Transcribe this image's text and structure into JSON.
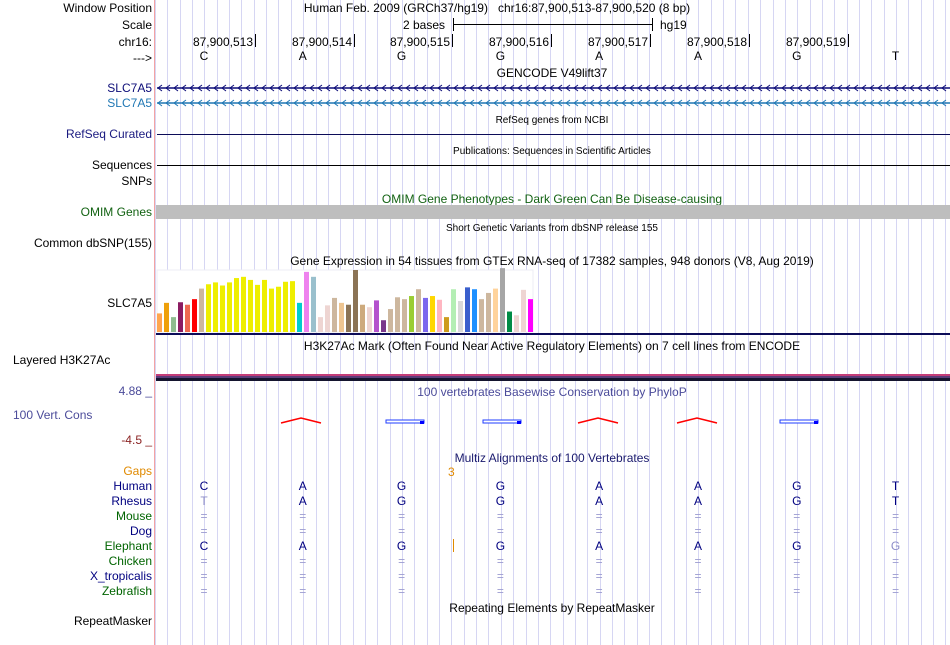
{
  "header": {
    "window_position_label": "Window Position",
    "scale_label": "Scale",
    "chrom_label": "chr16:",
    "strand_label": "--->",
    "assembly_title": "Human Feb. 2009 (GRCh37/hg19)",
    "position_text": "chr16:87,900,513-87,900,520 (8 bp)",
    "scale_text": "2 bases",
    "scale_db": "hg19"
  },
  "ruler": {
    "positions": [
      "87,900,513",
      "87,900,514",
      "87,900,515",
      "87,900,516",
      "87,900,517",
      "87,900,518",
      "87,900,519"
    ],
    "bases": [
      "C",
      "A",
      "G",
      "G",
      "A",
      "A",
      "G",
      "T"
    ]
  },
  "tracks": {
    "gencode": {
      "title": "GENCODE V49lift37",
      "genes": [
        "SLC7A5",
        "SLC7A5"
      ],
      "strand": "minus"
    },
    "refseq": {
      "title": "RefSeq genes from NCBI",
      "label": "RefSeq Curated"
    },
    "publications": {
      "title": "Publications: Sequences in Scientific Articles",
      "label": "Sequences",
      "label2": "SNPs"
    },
    "omim": {
      "title": "OMIM Gene Phenotypes - Dark Green Can Be Disease-causing",
      "label": "OMIM Genes"
    },
    "dbsnp": {
      "title": "Short Genetic Variants from dbSNP release 155",
      "label": "Common dbSNP(155)"
    },
    "gtex": {
      "title": "Gene Expression in 54 tissues from GTEx RNA-seq of 17382 samples, 948 donors (V8, Aug 2019)",
      "label": "SLC7A5",
      "bars": [
        {
          "color": "#ffa54f",
          "value": 0.3
        },
        {
          "color": "#eea00a",
          "value": 0.47
        },
        {
          "color": "#8fbc8f",
          "value": 0.24
        },
        {
          "color": "#8b1c62",
          "value": 0.48
        },
        {
          "color": "#ee6a50",
          "value": 0.44
        },
        {
          "color": "#ff0000",
          "value": 0.53
        },
        {
          "color": "#cdb79e",
          "value": 0.7
        },
        {
          "color": "#eeee00",
          "value": 0.77
        },
        {
          "color": "#eeee00",
          "value": 0.8
        },
        {
          "color": "#eeee00",
          "value": 0.75
        },
        {
          "color": "#eeee00",
          "value": 0.8
        },
        {
          "color": "#eeee00",
          "value": 0.87
        },
        {
          "color": "#eeee00",
          "value": 0.89
        },
        {
          "color": "#eeee00",
          "value": 0.84
        },
        {
          "color": "#eeee00",
          "value": 0.76
        },
        {
          "color": "#eeee00",
          "value": 0.84
        },
        {
          "color": "#eeee00",
          "value": 0.7
        },
        {
          "color": "#eeee00",
          "value": 0.73
        },
        {
          "color": "#eeee00",
          "value": 0.81
        },
        {
          "color": "#eeee00",
          "value": 0.82
        },
        {
          "color": "#00cdcd",
          "value": 0.47
        },
        {
          "color": "#ee82ee",
          "value": 0.97
        },
        {
          "color": "#9ac0cd",
          "value": 0.89
        },
        {
          "color": "#eed5d2",
          "value": 0.24
        },
        {
          "color": "#eed5d2",
          "value": 0.43
        },
        {
          "color": "#cdb79e",
          "value": 0.55
        },
        {
          "color": "#eec591",
          "value": 0.47
        },
        {
          "color": "#8b7355",
          "value": 0.44
        },
        {
          "color": "#8b7355",
          "value": 1.0
        },
        {
          "color": "#cdaa7d",
          "value": 0.44
        },
        {
          "color": "#eed5d2",
          "value": 0.4
        },
        {
          "color": "#b452cd",
          "value": 0.51
        },
        {
          "color": "#7a378b",
          "value": 0.19
        },
        {
          "color": "#cdb79e",
          "value": 0.37
        },
        {
          "color": "#cdb79e",
          "value": 0.56
        },
        {
          "color": "#cdb79e",
          "value": 0.53
        },
        {
          "color": "#9acd32",
          "value": 0.58
        },
        {
          "color": "#cdb79e",
          "value": 0.69
        },
        {
          "color": "#7b68ee",
          "value": 0.55
        },
        {
          "color": "#ffd700",
          "value": 0.58
        },
        {
          "color": "#ffb6c1",
          "value": 0.52
        },
        {
          "color": "#cd9b1d",
          "value": 0.24
        },
        {
          "color": "#b4eeb4",
          "value": 0.69
        },
        {
          "color": "#d9d9d9",
          "value": 0.5
        },
        {
          "color": "#3a5fcd",
          "value": 0.72
        },
        {
          "color": "#1e90ff",
          "value": 0.69
        },
        {
          "color": "#cdb79e",
          "value": 0.53
        },
        {
          "color": "#cdb79e",
          "value": 0.63
        },
        {
          "color": "#ffd39b",
          "value": 0.7
        },
        {
          "color": "#a6a6a6",
          "value": 1.03
        },
        {
          "color": "#008b45",
          "value": 0.33
        },
        {
          "color": "#eed5d2",
          "value": 0.27
        },
        {
          "color": "#eed5d2",
          "value": 0.68
        },
        {
          "color": "#ff00ff",
          "value": 0.53
        }
      ]
    },
    "h3k27ac": {
      "title": "H3K27Ac Mark (Often Found Near Active Regulatory Elements) on 7 cell lines from ENCODE",
      "label": "Layered H3K27Ac"
    },
    "conservation": {
      "title": "100 vertebrates Basewise Conservation by PhyloP",
      "label": "100 Vert. Cons",
      "max_label": "4.88 _",
      "min_label": "-4.5 _",
      "glyphs": [
        "red-peak",
        "blue-bar",
        "blue-bar",
        "red-peak",
        "red-peak",
        "blue-bar"
      ]
    },
    "multiz": {
      "title": "Multiz Alignments of 100 Vertebrates",
      "gaps_label": "Gaps",
      "gap_count": "3",
      "species": [
        {
          "name": "Human",
          "color": "#000080",
          "bases": [
            "C",
            "A",
            "G",
            "G",
            "A",
            "A",
            "G",
            "T"
          ]
        },
        {
          "name": "Rhesus",
          "color": "#000080",
          "bases": [
            "T",
            "A",
            "G",
            "G",
            "A",
            "A",
            "G",
            "T"
          ]
        },
        {
          "name": "Mouse",
          "color": "#006400",
          "bases": [
            "=",
            "=",
            "=",
            "=",
            "=",
            "=",
            "=",
            "="
          ]
        },
        {
          "name": "Dog",
          "color": "#000080",
          "bases": [
            "=",
            "=",
            "=",
            "=",
            "=",
            "=",
            "=",
            "="
          ]
        },
        {
          "name": "Elephant",
          "color": "#006400",
          "bases": [
            "C",
            "A",
            "G",
            "G",
            "A",
            "A",
            "G",
            "G"
          ]
        },
        {
          "name": "Chicken",
          "color": "#006400",
          "bases": [
            "=",
            "=",
            "=",
            "=",
            "=",
            "=",
            "=",
            "="
          ]
        },
        {
          "name": "X_tropicalis",
          "color": "#000080",
          "bases": [
            "=",
            "=",
            "=",
            "=",
            "=",
            "=",
            "=",
            "="
          ]
        },
        {
          "name": "Zebrafish",
          "color": "#006400",
          "bases": [
            "=",
            "=",
            "=",
            "=",
            "=",
            "=",
            "=",
            "="
          ]
        }
      ]
    },
    "repeatmasker": {
      "title": "Repeating Elements by RepeatMasker",
      "label": "RepeatMasker"
    }
  },
  "colors": {
    "grid": "#d6d6f3",
    "gene_dark": "#0c0c78",
    "gene_light": "#1f77b4",
    "omim_bar": "#bebebe",
    "conservation_text": "#4b4b9a",
    "gaps": "#e08a00"
  }
}
